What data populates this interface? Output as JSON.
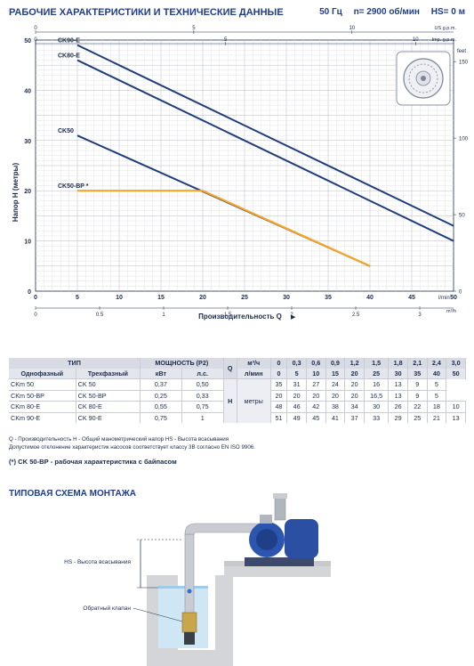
{
  "header": {
    "title": "РАБОЧИЕ ХАРАКТЕРИСТИКИ И ТЕХНИЧЕСКИЕ ДАННЫЕ",
    "freq": "50 Гц",
    "speed": "n= 2900 об/мин",
    "hs": "HS= 0 м"
  },
  "chart_data": {
    "type": "line",
    "xlabel": "Производительность Q",
    "ylabel": "Напор H (метры)",
    "x_unit": "l/min",
    "y2_unit": "feet",
    "xlim": [
      0,
      50
    ],
    "ylim": [
      0,
      50
    ],
    "x_ticks": [
      0,
      5,
      10,
      15,
      20,
      25,
      30,
      35,
      40,
      45,
      50
    ],
    "y_ticks": [
      0,
      10,
      20,
      30,
      40,
      50
    ],
    "grid": true,
    "series": [
      {
        "name": "CK90-E",
        "color": "#1f3d7a",
        "x": [
          5,
          50
        ],
        "y": [
          49,
          13
        ]
      },
      {
        "name": "CK80-E",
        "color": "#1f3d7a",
        "x": [
          5,
          50
        ],
        "y": [
          46,
          10
        ]
      },
      {
        "name": "CK50",
        "color": "#1f3d7a",
        "x": [
          5,
          40
        ],
        "y": [
          31,
          5
        ]
      },
      {
        "name": "CK50-BP *",
        "color": "#f5a623",
        "x": [
          5,
          20,
          40
        ],
        "y": [
          20,
          20,
          5
        ]
      }
    ],
    "top_axes": [
      {
        "unit": "US g.p.m.",
        "ticks": [
          "0",
          "5",
          "10"
        ]
      },
      {
        "unit": "Imp. g.p.m.",
        "ticks": [
          "0",
          "5",
          "10"
        ]
      }
    ],
    "right_axis_ticks": [
      "0",
      "50",
      "100",
      "150"
    ],
    "bottom_axis2": {
      "unit": "m³/h",
      "ticks": [
        "0",
        "0.5",
        "1",
        "1.5",
        "2",
        "2.5",
        "3"
      ]
    }
  },
  "table": {
    "tip": "ТИП",
    "power": "МОЩНОСТЬ (P2)",
    "single": "Однофазный",
    "three": "Трехфазный",
    "kw": "кВт",
    "hp": "л.с.",
    "q": "Q",
    "h": "H",
    "h_unit": "метры",
    "m3h": "м³/ч",
    "lmin": "л/мин",
    "m3h_vals": [
      "0",
      "0,3",
      "0,6",
      "0,9",
      "1,2",
      "1,5",
      "1,8",
      "2,1",
      "2,4",
      "3,0"
    ],
    "lmin_vals": [
      "0",
      "5",
      "10",
      "15",
      "20",
      "25",
      "30",
      "35",
      "40",
      "50"
    ],
    "rows": [
      {
        "single": "CKm 50",
        "three": "CK 50",
        "kw": "0,37",
        "hp": "0,50",
        "h": [
          "35",
          "31",
          "27",
          "24",
          "20",
          "16",
          "13",
          "9",
          "5",
          ""
        ]
      },
      {
        "single": "CKm 50-BP",
        "three": "CK 50-BP",
        "kw": "0,25",
        "hp": "0,33",
        "h": [
          "20",
          "20",
          "20",
          "20",
          "20",
          "16,5",
          "13",
          "9",
          "5",
          ""
        ]
      },
      {
        "single": "CKm 80-E",
        "three": "CK 80-E",
        "kw": "0,55",
        "hp": "0,75",
        "h": [
          "48",
          "46",
          "42",
          "38",
          "34",
          "30",
          "26",
          "22",
          "18",
          "10"
        ]
      },
      {
        "single": "CKm 90-E",
        "three": "CK 90-E",
        "kw": "0,75",
        "hp": "1",
        "h": [
          "51",
          "49",
          "45",
          "41",
          "37",
          "33",
          "29",
          "25",
          "21",
          "13"
        ]
      }
    ]
  },
  "notes": {
    "line1": "Q - Производительность   H - Общий манометрический напор   HS - Высота всасывания",
    "line2": "Допустимое отклонение характеристик насосов соответствует классу 3B согласно EN ISO 9906."
  },
  "footnote": "(*) CK 50-BP - рабочая характеристика с байпасом",
  "install": {
    "title": "ТИПОВАЯ СХЕМА МОНТАЖА",
    "hs_label": "HS - Высота всасывания",
    "valve_label": "Обратный клапан"
  },
  "colors": {
    "curve": "#1f3d7a",
    "bypass": "#f5a623",
    "accent": "#1f3d8a",
    "grid": "#c8ccd6"
  }
}
